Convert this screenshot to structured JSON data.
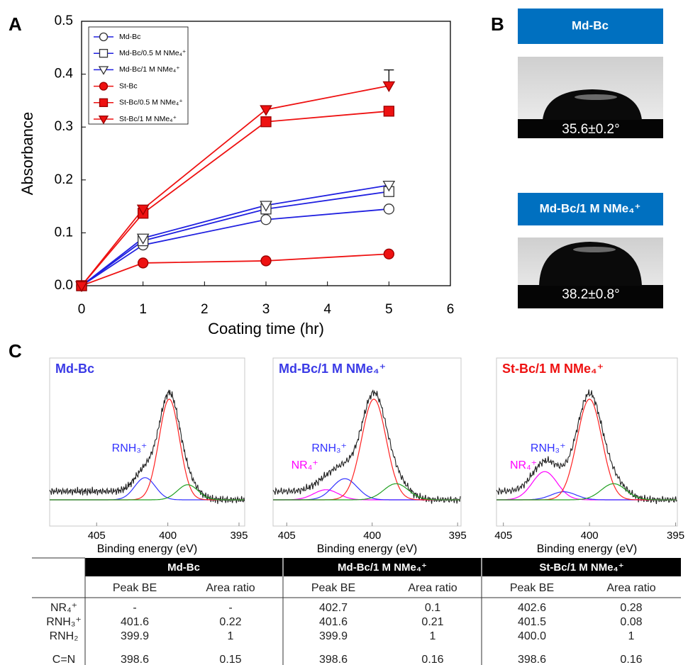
{
  "panel_labels": [
    "A",
    "B",
    "C"
  ],
  "chart_data": [
    {
      "type": "line",
      "xlabel": "Coating time (hr)",
      "ylabel": "Absorbance",
      "x": [
        0,
        1,
        3,
        5
      ],
      "xlim": [
        0,
        6
      ],
      "xticks": [
        0,
        1,
        2,
        3,
        4,
        5,
        6
      ],
      "ylim": [
        0,
        0.5
      ],
      "yticks": [
        {
          "value": 0,
          "label": "0.0"
        },
        0.1,
        0.2,
        0.3,
        0.4,
        0.5
      ],
      "legend": "upper left",
      "series": [
        {
          "name": "Md-Bc",
          "color": "#2020e0",
          "marker": "circle",
          "filled": false,
          "values": [
            0,
            0.077,
            0.125,
            0.145
          ]
        },
        {
          "name": "Md-Bc/0.5 M NMe₄⁺",
          "color": "#2020e0",
          "marker": "square",
          "filled": false,
          "values": [
            0,
            0.085,
            0.145,
            0.178
          ]
        },
        {
          "name": "Md-Bc/1 M NMe₄⁺",
          "color": "#2020e0",
          "marker": "triangle-down",
          "filled": false,
          "values": [
            0,
            0.09,
            0.152,
            0.19
          ]
        },
        {
          "name": "St-Bc",
          "color": "#ee1111",
          "marker": "circle",
          "filled": true,
          "values": [
            0,
            0.043,
            0.047,
            0.06
          ]
        },
        {
          "name": "St-Bc/0.5 M NMe₄⁺",
          "color": "#ee1111",
          "marker": "square",
          "filled": true,
          "values": [
            0,
            0.137,
            0.31,
            0.33
          ]
        },
        {
          "name": "St-Bc/1 M NMe₄⁺",
          "color": "#ee1111",
          "marker": "triangle-down",
          "filled": true,
          "values": [
            0,
            0.145,
            0.333,
            0.378
          ],
          "errors": [
            null,
            null,
            null,
            0.03
          ]
        }
      ]
    },
    {
      "type": "spectrum",
      "title": "Md-Bc",
      "title_color": "#3a3ae6",
      "xlim": [
        408.3,
        394.6
      ],
      "xticks": [
        405,
        400,
        395
      ],
      "xlabel": "Binding energy (eV)",
      "annotations": [
        "RNH₃⁺"
      ]
    },
    {
      "type": "spectrum",
      "title": "Md-Bc/1 M NMe₄⁺",
      "title_color": "#3a3ae6",
      "xlim": [
        405.8,
        394.8
      ],
      "xticks": [
        405,
        400,
        395
      ],
      "xlabel": "Binding energy (eV)",
      "annotations": [
        "RNH₃⁺",
        "NR₄⁺"
      ]
    },
    {
      "type": "spectrum",
      "title": "St-Bc/1 M NMe₄⁺",
      "title_color": "#ee1111",
      "xlim": [
        405.4,
        394.9
      ],
      "xticks": [
        405,
        400,
        395
      ],
      "xlabel": "Binding energy (eV)",
      "annotations": [
        "RNH₃⁺",
        "NR₄⁺"
      ]
    }
  ],
  "contact_angles": [
    {
      "label": "Md-Bc",
      "value": "35.6±0.2°"
    },
    {
      "label": "Md-Bc/1 M NMe₄⁺",
      "value": "38.2±0.8°"
    }
  ],
  "table": {
    "groups": [
      "Md-Bc",
      "Md-Bc/1 M NMe₄⁺",
      "St-Bc/1 M NMe₄⁺"
    ],
    "columns": [
      "Peak BE",
      "Area ratio",
      "Peak BE",
      "Area ratio",
      "Peak BE",
      "Area ratio"
    ],
    "row_colors": [
      "#ff00ff",
      "#3333ff",
      "#ff2222",
      "#22a022"
    ],
    "rows": [
      {
        "label": "NR₄⁺",
        "cells": [
          "-",
          "-",
          "402.7",
          "0.1",
          "402.6",
          "0.28"
        ]
      },
      {
        "label": "RNH₃⁺",
        "cells": [
          "401.6",
          "0.22",
          "401.6",
          "0.21",
          "401.5",
          "0.08"
        ]
      },
      {
        "label": "RNH₂",
        "cells": [
          "399.9",
          "1",
          "399.9",
          "1",
          "400.0",
          "1"
        ]
      },
      {
        "label": "C=N",
        "cells": [
          "398.6",
          "0.15",
          "398.6",
          "0.16",
          "398.6",
          "0.16"
        ]
      }
    ]
  }
}
